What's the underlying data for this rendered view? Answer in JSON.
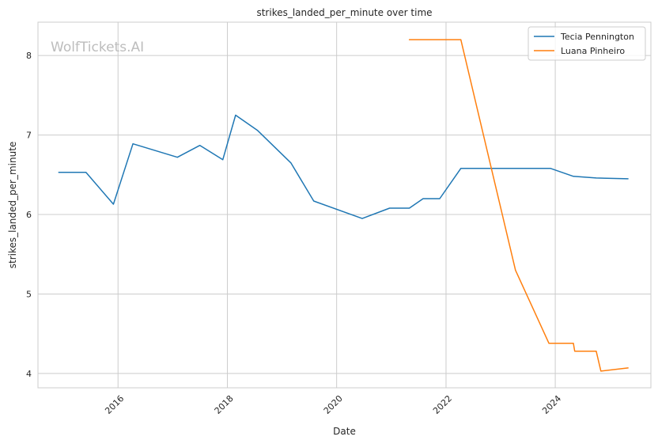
{
  "chart_data": {
    "type": "line",
    "title": "strikes_landed_per_minute over time",
    "xlabel": "Date",
    "ylabel": "strikes_landed_per_minute",
    "watermark": "WolfTickets.AI",
    "xlim": [
      "2014-07-15",
      "2025-10-01"
    ],
    "ylim": [
      3.82,
      8.42
    ],
    "x_ticks": [
      "2016",
      "2018",
      "2020",
      "2022",
      "2024"
    ],
    "y_ticks": [
      "4",
      "5",
      "6",
      "7",
      "8"
    ],
    "grid": true,
    "legend_position": "top-right",
    "series": [
      {
        "name": "Tecia Pennington",
        "color": "#1f77b4",
        "points": [
          [
            "2014-12-01",
            6.53
          ],
          [
            "2015-06-01",
            6.53
          ],
          [
            "2015-12-01",
            6.13
          ],
          [
            "2016-04-10",
            6.89
          ],
          [
            "2017-02-01",
            6.72
          ],
          [
            "2017-07-01",
            6.87
          ],
          [
            "2017-12-01",
            6.69
          ],
          [
            "2018-02-25",
            7.25
          ],
          [
            "2018-07-20",
            7.06
          ],
          [
            "2019-03-01",
            6.65
          ],
          [
            "2019-08-01",
            6.17
          ],
          [
            "2020-06-20",
            5.95
          ],
          [
            "2020-12-20",
            6.08
          ],
          [
            "2021-05-01",
            6.08
          ],
          [
            "2021-08-01",
            6.2
          ],
          [
            "2021-11-20",
            6.2
          ],
          [
            "2022-04-10",
            6.58
          ],
          [
            "2023-12-01",
            6.58
          ],
          [
            "2024-05-01",
            6.48
          ],
          [
            "2024-10-01",
            6.46
          ],
          [
            "2025-05-01",
            6.45
          ]
        ]
      },
      {
        "name": "Luana Pinheiro",
        "color": "#ff7f0e",
        "points": [
          [
            "2021-05-01",
            8.2
          ],
          [
            "2022-04-10",
            8.2
          ],
          [
            "2023-04-10",
            5.3
          ],
          [
            "2023-11-20",
            4.38
          ],
          [
            "2024-05-01",
            4.38
          ],
          [
            "2024-05-10",
            4.28
          ],
          [
            "2024-10-01",
            4.28
          ],
          [
            "2024-11-01",
            4.03
          ],
          [
            "2025-05-01",
            4.07
          ]
        ]
      }
    ]
  }
}
